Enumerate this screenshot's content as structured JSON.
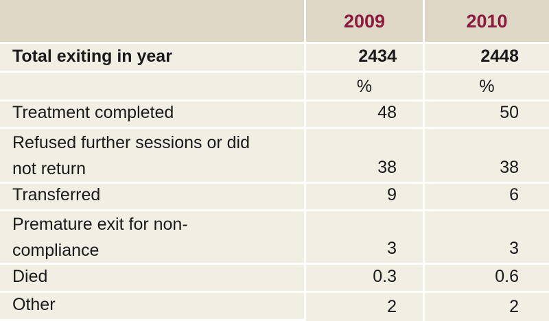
{
  "header": {
    "label": "",
    "year_a": "2009",
    "year_b": "2010"
  },
  "total": {
    "label": "Total exiting in year",
    "a": "2434",
    "b": "2448"
  },
  "unit_row": {
    "label": "",
    "a": "%",
    "b": "%"
  },
  "rows": [
    {
      "label_lines": [
        "Treatment completed"
      ],
      "a": "48",
      "b": "50"
    },
    {
      "label_lines": [
        "Refused further sessions or did",
        "not return"
      ],
      "a": "38",
      "b": "38"
    },
    {
      "label_lines": [
        "Transferred"
      ],
      "a": "9",
      "b": "6"
    },
    {
      "label_lines": [
        "Premature exit for non-",
        "compliance"
      ],
      "a": "3",
      "b": "3"
    },
    {
      "label_lines": [
        "Died"
      ],
      "a": "0.3",
      "b": "0.6"
    },
    {
      "label_lines": [
        "Other"
      ],
      "a": "2",
      "b": "2"
    }
  ],
  "colors": {
    "header_bg": "#ddd8c6",
    "cell_bg": "#f1eee4",
    "year_text": "#8c1a3c"
  }
}
